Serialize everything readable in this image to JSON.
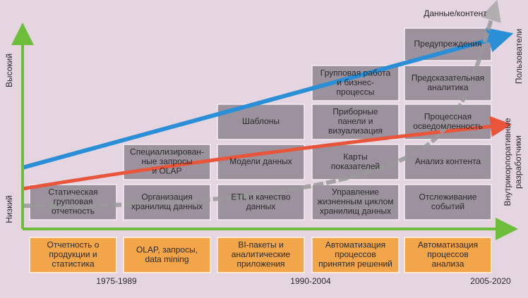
{
  "axes": {
    "high": "Высокий",
    "low": "Низкий"
  },
  "trends": {
    "data": "Данные/контент",
    "users": "Пользователи",
    "developers": [
      "Внутрикорпоративные",
      "разработчики"
    ]
  },
  "columns": [
    {
      "cells": [
        {
          "lines": [
            "Статическая",
            "групповая",
            "отчетность"
          ]
        }
      ],
      "footer": {
        "lines": [
          "Отчетность о",
          "продукции и",
          "статистика"
        ]
      }
    },
    {
      "cells": [
        {
          "lines": [
            "Организация",
            "хранилищ данных"
          ]
        },
        {
          "lines": [
            "Специализирован-",
            "ные запросы",
            "и OLAP"
          ]
        }
      ],
      "footer": {
        "lines": [
          "OLAP, запросы,",
          "data mining"
        ]
      }
    },
    {
      "cells": [
        {
          "lines": [
            "ETL и качество",
            "данных"
          ]
        },
        {
          "lines": [
            "Модели данных"
          ]
        },
        {
          "lines": [
            "Шаблоны"
          ]
        }
      ],
      "footer": {
        "lines": [
          "BI-пакеты и",
          "аналитические",
          "приложения"
        ]
      }
    },
    {
      "cells": [
        {
          "lines": [
            "Управление",
            "жизненным циклом",
            "хранилищ данных"
          ]
        },
        {
          "lines": [
            "Карты",
            "показателей"
          ]
        },
        {
          "lines": [
            "Приборные",
            "панели и",
            "визуализация"
          ]
        },
        {
          "lines": [
            "Групповая работа",
            "и бизнес-",
            "процессы"
          ]
        }
      ],
      "footer": {
        "lines": [
          "Автоматизация",
          "процессов",
          "принятия решений"
        ]
      }
    },
    {
      "cells": [
        {
          "lines": [
            "Отслеживание",
            "событий"
          ]
        },
        {
          "lines": [
            "Анализ контента"
          ]
        },
        {
          "lines": [
            "Процессная",
            "осведомленность"
          ]
        },
        {
          "lines": [
            "Предсказательная",
            "аналитика"
          ]
        },
        {
          "lines": [
            "Предупреждения"
          ]
        }
      ],
      "footer": {
        "lines": [
          "Автоматизация",
          "процессов",
          "анализа"
        ]
      }
    }
  ],
  "eras": [
    "1975-1989",
    "1990-2004",
    "2005-2020"
  ]
}
